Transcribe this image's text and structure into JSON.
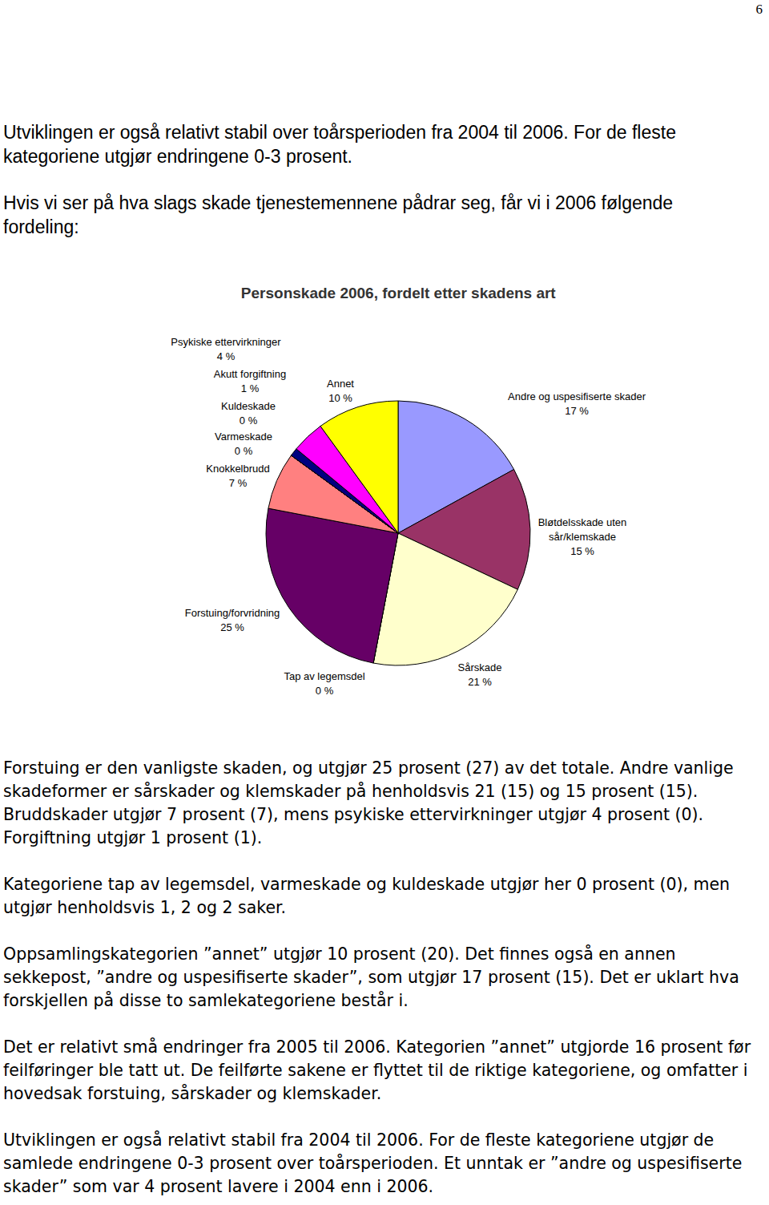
{
  "page_number": "6",
  "text_before": [
    "Utviklingen er også relativt stabil over toårsperioden fra 2004 til 2006. For de fleste kategoriene utgjør endringene 0-3 prosent.",
    "Hvis vi ser på hva slags skade tjenestemennene pådrar seg, får vi i 2006 følgende fordeling:"
  ],
  "chart_data": {
    "type": "pie",
    "title": "Personskade 2006, fordelt etter skadens art",
    "categories": [
      "Andre og uspesifiserte skader",
      "Bløtdelsskade uten sår/klemskade",
      "Sårskade",
      "Tap av legemsdel",
      "Forstuing/forvridning",
      "Knokkelbrudd",
      "Varmeskade",
      "Kuldeskade",
      "Akutt forgiftning",
      "Psykiske ettervirkninger",
      "Annet"
    ],
    "values": [
      17,
      15,
      21,
      0,
      25,
      7,
      0,
      0,
      1,
      4,
      10
    ],
    "value_labels": [
      "17 %",
      "15 %",
      "21 %",
      "0 %",
      "25 %",
      "7 %",
      "0 %",
      "0 %",
      "1 %",
      "4 %",
      "10 %"
    ],
    "colors": [
      "#9999ff",
      "#993366",
      "#ffffcc",
      "#ccffff",
      "#660066",
      "#ff8080",
      "#0066cc",
      "#ccccff",
      "#000080",
      "#ff00ff",
      "#ffff00"
    ],
    "data_labels": true
  },
  "text_after": [
    "Forstuing er den vanligste skaden, og utgjør 25 prosent (27) av det totale. Andre vanlige skadeformer er sårskader og klemskader på henholdsvis 21 (15) og 15 prosent (15). Bruddskader utgjør 7 prosent (7), mens psykiske ettervirkninger utgjør 4 prosent (0). Forgiftning utgjør 1 prosent (1).",
    "Kategoriene tap av legemsdel, varmeskade og kuldeskade utgjør her 0 prosent (0), men utgjør henholdsvis 1, 2 og 2 saker.",
    "Oppsamlingskategorien ”annet” utgjør 10 prosent (20). Det finnes også en annen sekkepost, ”andre og uspesifiserte skader”, som utgjør 17 prosent (15). Det er uklart hva forskjellen på disse to samlekategoriene består i.",
    "Det er relativt små endringer fra 2005 til 2006. Kategorien ”annet” utgjorde 16 prosent før feilføringer ble tatt ut. De feilførte sakene er flyttet til de riktige kategoriene, og omfatter i hovedsak forstuing, sårskader og klemskader.",
    "Utviklingen er også relativt stabil fra 2004 til 2006. For de fleste kategoriene utgjør de samlede endringene 0-3 prosent over toårsperioden. Et unntak er ”andre og uspesifiserte skader” som var 4 prosent lavere i 2004 enn i 2006."
  ]
}
